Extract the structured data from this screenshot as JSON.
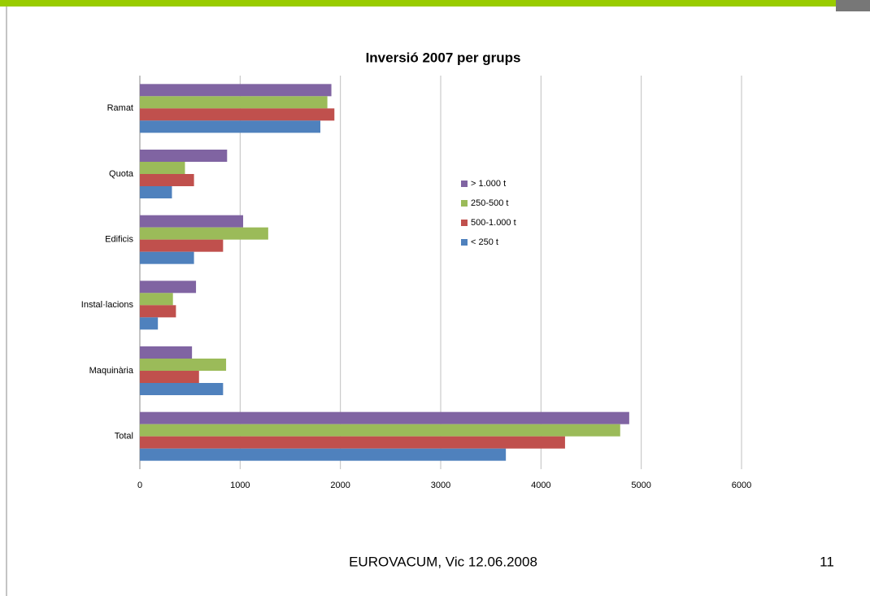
{
  "chart_data": {
    "type": "hbar",
    "title": "Inversió 2007 per grups",
    "categories": [
      "Ramat",
      "Quota",
      "Edificis",
      "Instal·lacions",
      "Maquinària",
      "Total"
    ],
    "series": [
      {
        "name": "> 1.000 t",
        "color": "#8064a2",
        "values": [
          1910,
          870,
          1030,
          560,
          520,
          4880
        ]
      },
      {
        "name": "250-500 t",
        "color": "#9bbb59",
        "values": [
          1870,
          450,
          1280,
          330,
          860,
          4790
        ]
      },
      {
        "name": "500-1.000 t",
        "color": "#c0504d",
        "values": [
          1940,
          540,
          830,
          360,
          590,
          4240
        ]
      },
      {
        "name": "< 250 t",
        "color": "#4f81bd",
        "values": [
          1800,
          320,
          540,
          180,
          830,
          3650
        ]
      }
    ],
    "xlim": [
      0,
      6000
    ],
    "xticks": [
      0,
      1000,
      2000,
      3000,
      4000,
      5000,
      6000
    ],
    "grid": true,
    "legend": "center"
  },
  "footer": {
    "text": "EUROVACUM, Vic 12.06.2008",
    "page": "11"
  }
}
